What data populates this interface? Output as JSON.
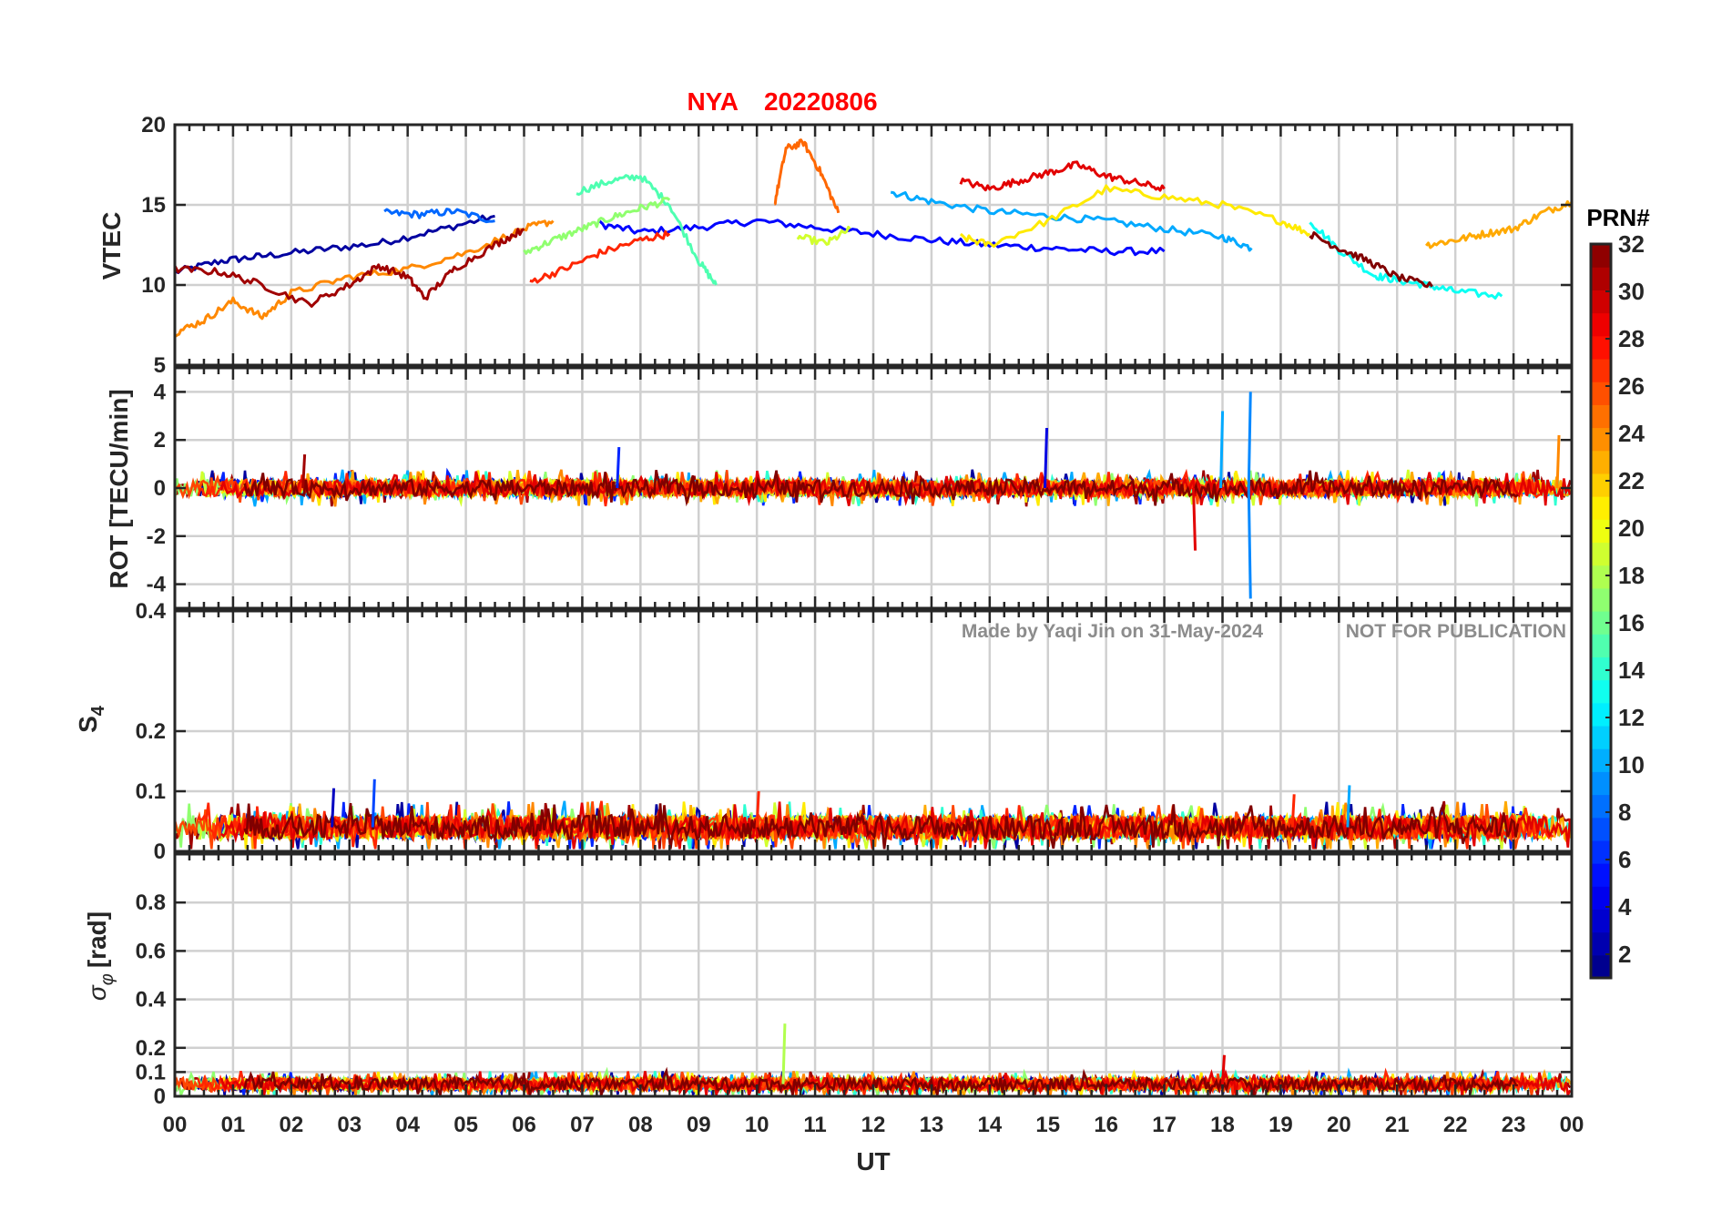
{
  "figure": {
    "title_station": "NYA",
    "title_date": "20220806",
    "watermark_left": "Made by Yaqi Jin on 31-May-2024",
    "watermark_right": "NOT FOR PUBLICATION"
  },
  "chart_data": [
    {
      "type": "line",
      "id": "vtec",
      "ylabel": "VTEC",
      "ylim": [
        5,
        20
      ],
      "yticks": [
        5,
        10,
        15,
        20
      ],
      "ytick_labels": [
        "5",
        "10",
        "15",
        "20"
      ],
      "grid": true,
      "series": [
        {
          "name": "PRN 2",
          "prn": 2,
          "x": [
            0,
            0.8,
            1.5,
            2.5,
            3.5,
            4.5,
            5.5
          ],
          "y": [
            10.8,
            11.5,
            11.8,
            12.2,
            12.6,
            13.4,
            14.3
          ]
        },
        {
          "name": "PRN 5",
          "prn": 5,
          "x": [
            7.3,
            8,
            9,
            10,
            11,
            12,
            13,
            14,
            15,
            16,
            17
          ],
          "y": [
            13.8,
            13.3,
            13.6,
            14.0,
            13.6,
            13.2,
            12.8,
            12.5,
            12.3,
            12.1,
            12.1
          ]
        },
        {
          "name": "PRN 8",
          "prn": 8,
          "x": [
            3.6,
            4.2,
            4.8,
            5.5
          ],
          "y": [
            14.5,
            14.4,
            14.6,
            14.0
          ]
        },
        {
          "name": "PRN 10",
          "prn": 10,
          "x": [
            12.3,
            13,
            14,
            15,
            16,
            17,
            18,
            18.5
          ],
          "y": [
            15.8,
            15.2,
            14.6,
            14.3,
            14.0,
            13.5,
            13.0,
            12.3
          ]
        },
        {
          "name": "PRN 13",
          "prn": 13,
          "x": [
            19.5,
            20,
            20.6,
            21,
            21.5,
            22,
            22.8
          ],
          "y": [
            14.0,
            12.2,
            10.6,
            10.3,
            10.0,
            9.6,
            9.3
          ]
        },
        {
          "name": "PRN 15",
          "prn": 15,
          "x": [
            6.9,
            7.5,
            8,
            8.5,
            9,
            9.3
          ],
          "y": [
            15.8,
            16.5,
            16.8,
            15.0,
            11.5,
            10.0
          ]
        },
        {
          "name": "PRN 17",
          "prn": 17,
          "x": [
            6,
            6.5,
            7,
            7.5,
            8,
            8.5
          ],
          "y": [
            12.0,
            12.8,
            13.5,
            14.2,
            14.8,
            15.3
          ]
        },
        {
          "name": "PRN 19",
          "prn": 19,
          "x": [
            10.7,
            11.2,
            11.6
          ],
          "y": [
            13.0,
            12.6,
            13.5
          ]
        },
        {
          "name": "PRN 21",
          "prn": 21,
          "x": [
            13.5,
            14,
            15,
            16,
            17,
            18,
            19,
            19.5
          ],
          "y": [
            13.0,
            12.5,
            14.0,
            16.0,
            15.5,
            15.0,
            14.0,
            13.2
          ]
        },
        {
          "name": "PRN 23",
          "prn": 23,
          "x": [
            21.5,
            22,
            22.5,
            23,
            23.5,
            24
          ],
          "y": [
            12.5,
            12.8,
            13.2,
            13.5,
            14.5,
            15.2
          ]
        },
        {
          "name": "PRN 24",
          "prn": 24,
          "x": [
            0,
            0.5,
            1,
            1.5,
            2,
            3,
            4,
            5,
            6,
            6.5
          ],
          "y": [
            7.0,
            7.8,
            9.0,
            8.0,
            9.5,
            10.5,
            11.0,
            12.0,
            13.5,
            14.0
          ]
        },
        {
          "name": "PRN 25",
          "prn": 25,
          "x": [
            10.3,
            10.5,
            10.8,
            11.1,
            11.4
          ],
          "y": [
            15.0,
            18.5,
            18.9,
            17.0,
            14.5
          ]
        },
        {
          "name": "PRN 27",
          "prn": 27,
          "x": [
            6.1,
            6.7,
            7.3,
            8,
            8.5
          ],
          "y": [
            10.2,
            11.0,
            12.0,
            12.8,
            13.2
          ]
        },
        {
          "name": "PRN 29",
          "prn": 29,
          "x": [
            13.5,
            14,
            14.5,
            15,
            15.5,
            16,
            16.5,
            17
          ],
          "y": [
            16.5,
            16.0,
            16.5,
            17.0,
            17.5,
            16.8,
            16.4,
            16.0
          ]
        },
        {
          "name": "PRN 31",
          "prn": 31,
          "x": [
            0,
            0.8,
            1.5,
            2.3,
            3,
            3.5,
            4,
            4.3,
            4.8,
            5.5,
            6
          ],
          "y": [
            11.0,
            10.8,
            10.0,
            8.8,
            10.0,
            11.2,
            10.5,
            9.2,
            11.0,
            12.5,
            13.5
          ]
        },
        {
          "name": "PRN 32",
          "prn": 32,
          "x": [
            19.5,
            20,
            20.5,
            21,
            21.6
          ],
          "y": [
            13.2,
            12.3,
            11.5,
            10.5,
            9.9
          ]
        }
      ]
    },
    {
      "type": "line",
      "id": "rot",
      "ylabel": "ROT [TECU/min]",
      "ylim": [
        -5,
        5
      ],
      "yticks": [
        -4,
        -2,
        0,
        2,
        4
      ],
      "ytick_labels": [
        "-4",
        "-2",
        "0",
        "2",
        "4"
      ],
      "grid": true,
      "baseline": 0,
      "noise_amplitude": 0.35,
      "spikes": [
        {
          "x": 18.45,
          "y": 4.0,
          "prn": 9
        },
        {
          "x": 18.45,
          "y": -4.6,
          "prn": 9
        },
        {
          "x": 14.95,
          "y": 2.5,
          "prn": 4
        },
        {
          "x": 17.97,
          "y": 3.2,
          "prn": 10
        },
        {
          "x": 17.5,
          "y": -2.6,
          "prn": 29
        },
        {
          "x": 23.75,
          "y": 2.2,
          "prn": 24
        },
        {
          "x": 2.2,
          "y": 1.4,
          "prn": 31
        },
        {
          "x": 7.6,
          "y": 1.7,
          "prn": 6
        }
      ]
    },
    {
      "type": "line",
      "id": "s4",
      "ylabel": "S4",
      "ylim": [
        0,
        0.4
      ],
      "yticks": [
        0,
        0.1,
        0.2,
        0.4
      ],
      "ytick_labels": [
        "0",
        "0.1",
        "0.2",
        "0.4"
      ],
      "grid": true,
      "baseline": 0.04,
      "noise_amplitude": 0.02,
      "spikes": [
        {
          "x": 3.4,
          "y": 0.12,
          "prn": 7
        },
        {
          "x": 2.7,
          "y": 0.105,
          "prn": 3
        },
        {
          "x": 20.15,
          "y": 0.11,
          "prn": 10
        },
        {
          "x": 10.0,
          "y": 0.1,
          "prn": 27
        },
        {
          "x": 19.2,
          "y": 0.095,
          "prn": 27
        }
      ]
    },
    {
      "type": "line",
      "id": "sigmaphi",
      "ylabel": "σφ [rad]",
      "ylim": [
        0,
        1
      ],
      "yticks": [
        0,
        0.1,
        0.2,
        0.4,
        0.6,
        0.8
      ],
      "ytick_labels": [
        "0",
        "0.1",
        "0.2",
        "0.4",
        "0.6",
        "0.8"
      ],
      "grid": true,
      "baseline": 0.05,
      "noise_amplitude": 0.025,
      "spikes": [
        {
          "x": 10.45,
          "y": 0.3,
          "prn": 18
        },
        {
          "x": 18.0,
          "y": 0.17,
          "prn": 29
        }
      ]
    }
  ],
  "xaxis": {
    "label": "UT",
    "xlim": [
      0,
      24
    ],
    "ticks": [
      0,
      1,
      2,
      3,
      4,
      5,
      6,
      7,
      8,
      9,
      10,
      11,
      12,
      13,
      14,
      15,
      16,
      17,
      18,
      19,
      20,
      21,
      22,
      23,
      24
    ],
    "tick_labels": [
      "00",
      "01",
      "02",
      "03",
      "04",
      "05",
      "06",
      "07",
      "08",
      "09",
      "10",
      "11",
      "12",
      "13",
      "14",
      "15",
      "16",
      "17",
      "18",
      "19",
      "20",
      "21",
      "22",
      "23",
      "00"
    ]
  },
  "colorbar": {
    "title": "PRN#",
    "min": 1,
    "max": 32,
    "ticks": [
      2,
      4,
      6,
      8,
      10,
      12,
      14,
      16,
      18,
      20,
      22,
      24,
      26,
      28,
      30,
      32
    ],
    "tick_labels": [
      "2",
      "4",
      "6",
      "8",
      "10",
      "12",
      "14",
      "16",
      "18",
      "20",
      "22",
      "24",
      "26",
      "28",
      "30",
      "32"
    ],
    "colormap": "jet"
  },
  "colors": {
    "title": "#ff0000",
    "axis": "#262626",
    "grid": "#d0d0d0",
    "watermark": "#8c8c8c"
  }
}
